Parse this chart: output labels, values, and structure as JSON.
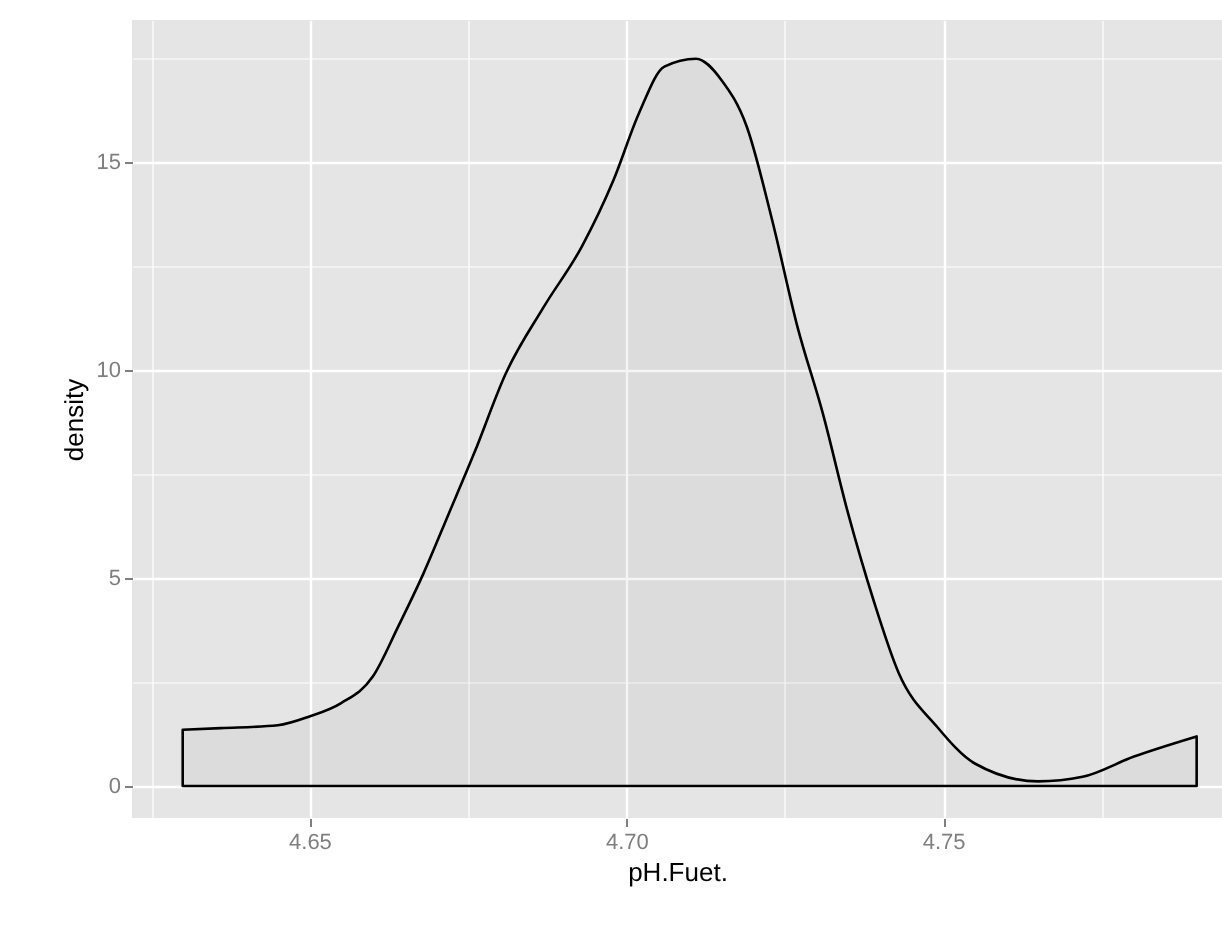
{
  "chart_data": {
    "type": "area",
    "xlabel": "pH.Fuet.",
    "ylabel": "density",
    "x": [
      4.63,
      4.636,
      4.645,
      4.65,
      4.655,
      4.66,
      4.664,
      4.668,
      4.672,
      4.676,
      4.681,
      4.687,
      4.693,
      4.698,
      4.702,
      4.706,
      4.711,
      4.715,
      4.719,
      4.723,
      4.727,
      4.731,
      4.735,
      4.739,
      4.743,
      4.749,
      4.755,
      4.765,
      4.772,
      4.78,
      4.79
    ],
    "series": [
      {
        "color": "#000000",
        "values": [
          1.35,
          1.39,
          1.46,
          1.67,
          1.99,
          2.63,
          3.83,
          5.11,
          6.55,
          8.0,
          9.92,
          11.52,
          12.97,
          14.57,
          16.17,
          17.29,
          17.48,
          16.97,
          15.85,
          13.61,
          11.04,
          8.96,
          6.55,
          4.47,
          2.71,
          1.43,
          0.54,
          0.11,
          0.22,
          0.7,
          1.19
        ]
      }
    ],
    "xlim": [
      4.622,
      4.794
    ],
    "ylim": [
      -0.77,
      18.41
    ],
    "xticks": [
      {
        "value": 4.625,
        "label": null
      },
      {
        "value": 4.65,
        "label": "4.65"
      },
      {
        "value": 4.675,
        "label": null
      },
      {
        "value": 4.7,
        "label": "4.70"
      },
      {
        "value": 4.725,
        "label": null
      },
      {
        "value": 4.75,
        "label": "4.75"
      },
      {
        "value": 4.775,
        "label": null
      }
    ],
    "yticks": [
      0,
      {
        "value": 2.5,
        "label": null
      },
      5,
      {
        "value": 7.5,
        "label": null
      },
      10,
      {
        "value": 12.5,
        "label": null
      },
      15,
      {
        "value": 17.5,
        "label": null
      }
    ],
    "grid": true
  }
}
